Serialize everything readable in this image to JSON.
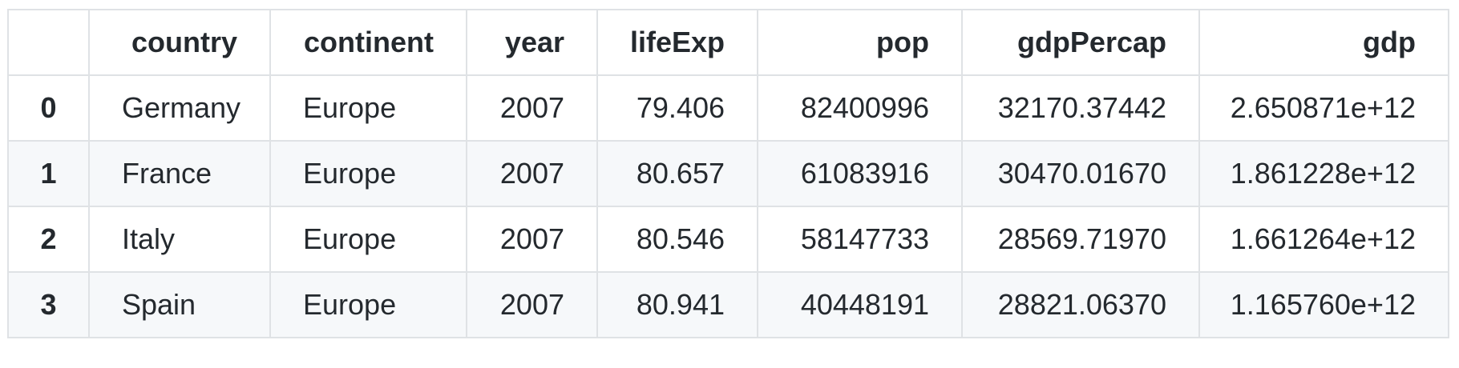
{
  "table": {
    "columns": [
      "",
      "country",
      "continent",
      "year",
      "lifeExp",
      "pop",
      "gdpPercap",
      "gdp"
    ],
    "rows": [
      [
        "0",
        "Germany",
        "Europe",
        "2007",
        "79.406",
        "82400996",
        "32170.37442",
        "2.650871e+12"
      ],
      [
        "1",
        "France",
        "Europe",
        "2007",
        "80.657",
        "61083916",
        "30470.01670",
        "1.861228e+12"
      ],
      [
        "2",
        "Italy",
        "Europe",
        "2007",
        "80.546",
        "58147733",
        "28569.71970",
        "1.661264e+12"
      ],
      [
        "3",
        "Spain",
        "Europe",
        "2007",
        "80.941",
        "40448191",
        "28821.06370",
        "1.165760e+12"
      ]
    ]
  }
}
